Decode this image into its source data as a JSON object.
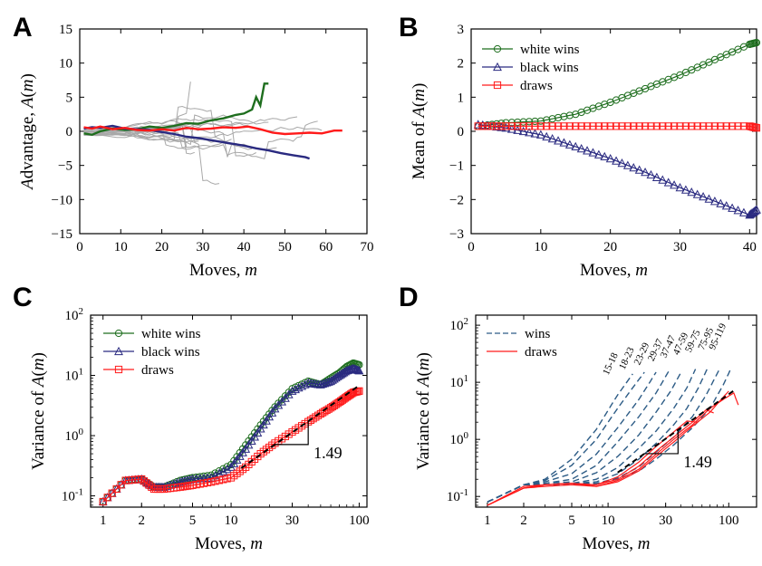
{
  "chart_data": [
    {
      "panel": "A",
      "type": "line",
      "xlabel": "Moves, m",
      "ylabel": "Advantage, A(m)",
      "xlim": [
        0,
        70
      ],
      "ylim": [
        -15,
        15
      ],
      "xticks": [
        0,
        10,
        20,
        30,
        40,
        50,
        60,
        70
      ],
      "yticks": [
        -15,
        -10,
        -5,
        0,
        5,
        10,
        15
      ],
      "background_series_count": 20,
      "series": [
        {
          "color": "#1e6e1e",
          "x": [
            1,
            3,
            5,
            8,
            11,
            14,
            17,
            20,
            23,
            26,
            29,
            32,
            35,
            38,
            40,
            42,
            43,
            44,
            45,
            46
          ],
          "y": [
            -0.3,
            -0.5,
            0,
            0.4,
            0.2,
            0.3,
            0.7,
            0.5,
            0.8,
            1.2,
            1.1,
            1.6,
            1.9,
            2.4,
            2.6,
            3.2,
            5.0,
            3.8,
            7.0,
            7.0
          ]
        },
        {
          "color": "#2a2a80",
          "x": [
            1,
            3,
            5,
            8,
            11,
            14,
            17,
            20,
            23,
            26,
            29,
            32,
            35,
            38,
            40,
            43,
            46,
            49,
            52,
            55,
            56
          ],
          "y": [
            0.4,
            0.6,
            0.5,
            0.8,
            0.4,
            0.3,
            0.2,
            -0.1,
            -0.4,
            -0.8,
            -1.0,
            -1.3,
            -1.6,
            -1.9,
            -2.1,
            -2.5,
            -2.8,
            -3.2,
            -3.5,
            -3.8,
            -4.0
          ]
        },
        {
          "color": "#ff1a1a",
          "x": [
            1,
            3,
            5,
            8,
            11,
            14,
            17,
            20,
            23,
            26,
            29,
            32,
            35,
            38,
            41,
            44,
            47,
            50,
            53,
            56,
            59,
            62,
            64
          ],
          "y": [
            0.6,
            0.4,
            0.7,
            0.3,
            0.5,
            0.2,
            0.1,
            0.3,
            0.1,
            0.5,
            0.3,
            0.4,
            0.6,
            0.5,
            0.7,
            0.3,
            -0.2,
            -0.4,
            -0.3,
            -0.2,
            -0.3,
            0.1,
            0.1
          ]
        }
      ]
    },
    {
      "panel": "B",
      "type": "line",
      "xlabel": "Moves, m",
      "ylabel": "Mean of A(m)",
      "xlim": [
        0,
        41
      ],
      "ylim": [
        -3,
        3
      ],
      "xticks": [
        0,
        10,
        20,
        30,
        40
      ],
      "yticks": [
        -3,
        -2,
        -1,
        0,
        1,
        2,
        3
      ],
      "legend": "top-left",
      "series": [
        {
          "name": "white wins",
          "marker": "circle",
          "color": "#1e6e1e",
          "x": [
            1,
            5,
            10,
            15,
            20,
            25,
            30,
            35,
            40,
            41
          ],
          "y": [
            0.15,
            0.25,
            0.3,
            0.5,
            0.85,
            1.25,
            1.65,
            2.1,
            2.55,
            2.6
          ]
        },
        {
          "name": "black wins",
          "marker": "triangle",
          "color": "#2a2a80",
          "x": [
            1,
            5,
            10,
            15,
            20,
            25,
            30,
            35,
            40,
            41
          ],
          "y": [
            0.2,
            0.1,
            -0.1,
            -0.45,
            -0.8,
            -1.2,
            -1.65,
            -2.05,
            -2.45,
            -2.3
          ]
        },
        {
          "name": "draws",
          "marker": "square",
          "color": "#ff1a1a",
          "x": [
            1,
            5,
            10,
            15,
            20,
            25,
            30,
            35,
            40,
            41
          ],
          "y": [
            0.15,
            0.15,
            0.15,
            0.15,
            0.15,
            0.15,
            0.15,
            0.15,
            0.15,
            0.1
          ]
        }
      ]
    },
    {
      "panel": "C",
      "type": "line",
      "xscale": "log",
      "yscale": "log",
      "xlabel": "Moves, m",
      "ylabel": "Variance of A(m)",
      "xlim": [
        0.8,
        115
      ],
      "ylim": [
        0.065,
        100
      ],
      "xticks": [
        1,
        2,
        5,
        10,
        30,
        100
      ],
      "yticks": [
        0.1,
        1,
        10,
        100
      ],
      "ytick_labels": [
        "10^-1",
        "10^0",
        "10^1",
        "10^2"
      ],
      "legend": "top-left",
      "slope_annotation": "1.49",
      "series": [
        {
          "name": "white wins",
          "marker": "circle",
          "color": "#1e6e1e",
          "x": [
            1,
            1.5,
            2,
            2.5,
            3,
            4,
            5,
            7,
            10,
            13,
            17,
            22,
            30,
            40,
            50,
            60,
            70,
            80,
            90,
            100
          ],
          "y": [
            0.08,
            0.18,
            0.19,
            0.14,
            0.14,
            0.18,
            0.2,
            0.22,
            0.33,
            0.7,
            1.5,
            3,
            6,
            8,
            7,
            9,
            11,
            14,
            16,
            15
          ]
        },
        {
          "name": "black wins",
          "marker": "triangle",
          "color": "#2a2a80",
          "x": [
            1,
            1.5,
            2,
            2.5,
            3,
            4,
            5,
            7,
            10,
            13,
            17,
            22,
            30,
            40,
            50,
            60,
            70,
            80,
            90,
            100
          ],
          "y": [
            0.08,
            0.18,
            0.19,
            0.14,
            0.14,
            0.17,
            0.19,
            0.2,
            0.3,
            0.6,
            1.3,
            2.8,
            5.5,
            7.5,
            7,
            8,
            10,
            12,
            13,
            12
          ]
        },
        {
          "name": "draws",
          "marker": "square",
          "color": "#ff1a1a",
          "x": [
            1,
            1.5,
            2,
            2.5,
            3,
            4,
            5,
            7,
            10,
            13,
            17,
            22,
            30,
            40,
            50,
            60,
            70,
            80,
            90,
            100
          ],
          "y": [
            0.08,
            0.18,
            0.19,
            0.13,
            0.13,
            0.14,
            0.15,
            0.17,
            0.2,
            0.3,
            0.5,
            0.75,
            1.15,
            1.7,
            2.3,
            2.9,
            3.6,
            4.4,
            5.2,
            5.5
          ]
        }
      ]
    },
    {
      "panel": "D",
      "type": "line",
      "xscale": "log",
      "yscale": "log",
      "xlabel": "Moves, m",
      "ylabel": "Variance of A(m)",
      "xlim": [
        0.8,
        170
      ],
      "ylim": [
        0.065,
        150
      ],
      "xticks": [
        1,
        2,
        5,
        10,
        30,
        100
      ],
      "yticks": [
        0.1,
        1,
        10,
        100
      ],
      "ytick_labels": [
        "10^-1",
        "10^0",
        "10^1",
        "10^2"
      ],
      "legend": "top-left",
      "legend_entries": [
        {
          "label": "wins",
          "color": "#2d5c86",
          "dash": true
        },
        {
          "label": "draws",
          "color": "#ff1a1a",
          "dash": false
        }
      ],
      "slope_annotation": "1.49",
      "curve_labels": [
        "15-18",
        "18-23",
        "23-29",
        "29-37",
        "37-47",
        "47-59",
        "59-75",
        "75-95",
        "95-119"
      ],
      "curve_label_x": [
        11,
        15,
        20,
        26,
        33,
        42,
        53,
        68,
        85
      ],
      "curve_label_y": [
        20,
        25,
        30,
        35,
        40,
        45,
        50,
        55,
        60
      ],
      "wins_curves": [
        {
          "x": [
            1,
            2,
            3,
            5,
            8,
            12,
            16
          ],
          "y": [
            0.08,
            0.16,
            0.2,
            0.45,
            1.5,
            6,
            14
          ]
        },
        {
          "x": [
            1,
            2,
            3,
            5,
            8,
            12,
            16,
            20
          ],
          "y": [
            0.08,
            0.16,
            0.19,
            0.35,
            1,
            3.5,
            8,
            15
          ]
        },
        {
          "x": [
            1,
            2,
            3,
            5,
            8,
            12,
            18,
            25
          ],
          "y": [
            0.08,
            0.16,
            0.18,
            0.25,
            0.55,
            1.6,
            5,
            15
          ]
        },
        {
          "x": [
            1,
            2,
            3,
            5,
            8,
            12,
            18,
            25,
            32
          ],
          "y": [
            0.08,
            0.16,
            0.17,
            0.2,
            0.35,
            0.9,
            2.5,
            6.5,
            16
          ]
        },
        {
          "x": [
            1,
            2,
            3,
            5,
            8,
            12,
            18,
            25,
            33,
            41
          ],
          "y": [
            0.08,
            0.16,
            0.17,
            0.18,
            0.26,
            0.5,
            1.2,
            3,
            7,
            16
          ]
        },
        {
          "x": [
            1,
            2,
            3,
            5,
            8,
            12,
            18,
            25,
            35,
            45,
            53
          ],
          "y": [
            0.08,
            0.16,
            0.16,
            0.17,
            0.2,
            0.32,
            0.7,
            1.4,
            3.5,
            8,
            17
          ]
        },
        {
          "x": [
            1,
            2,
            3,
            5,
            8,
            12,
            18,
            25,
            35,
            45,
            56,
            67
          ],
          "y": [
            0.08,
            0.16,
            0.16,
            0.17,
            0.18,
            0.25,
            0.45,
            0.85,
            1.8,
            3.5,
            8,
            18
          ]
        },
        {
          "x": [
            1,
            2,
            3,
            5,
            8,
            12,
            18,
            25,
            35,
            50,
            65,
            85
          ],
          "y": [
            0.08,
            0.16,
            0.16,
            0.17,
            0.17,
            0.21,
            0.33,
            0.6,
            1.1,
            2.5,
            6,
            18
          ]
        },
        {
          "x": [
            1,
            2,
            3,
            5,
            8,
            12,
            18,
            25,
            35,
            50,
            70,
            90,
            105
          ],
          "y": [
            0.08,
            0.16,
            0.16,
            0.16,
            0.17,
            0.2,
            0.28,
            0.45,
            0.8,
            1.6,
            3.5,
            9,
            18
          ]
        }
      ],
      "draws_curves": [
        {
          "x": [
            1,
            2,
            3,
            5,
            8,
            12,
            18,
            25,
            35,
            45,
            55
          ],
          "y": [
            0.07,
            0.15,
            0.16,
            0.17,
            0.16,
            0.22,
            0.4,
            0.75,
            1.35,
            2.1,
            2.0
          ]
        },
        {
          "x": [
            1,
            2,
            3,
            5,
            8,
            12,
            18,
            25,
            35,
            50,
            65,
            75
          ],
          "y": [
            0.07,
            0.14,
            0.16,
            0.17,
            0.16,
            0.2,
            0.34,
            0.62,
            1.1,
            2,
            3.3,
            2.9
          ]
        },
        {
          "x": [
            1,
            2,
            3,
            5,
            8,
            12,
            18,
            25,
            35,
            50,
            70,
            90,
            110,
            120
          ],
          "y": [
            0.07,
            0.14,
            0.16,
            0.17,
            0.15,
            0.19,
            0.3,
            0.55,
            1.0,
            1.8,
            3.5,
            5,
            6.5,
            4
          ]
        },
        {
          "x": [
            1,
            2,
            3,
            5,
            8,
            12,
            18,
            25,
            35,
            50,
            70,
            90,
            100
          ],
          "y": [
            0.07,
            0.14,
            0.15,
            0.16,
            0.15,
            0.18,
            0.28,
            0.5,
            0.9,
            1.7,
            3,
            5.5,
            7
          ]
        }
      ]
    }
  ]
}
